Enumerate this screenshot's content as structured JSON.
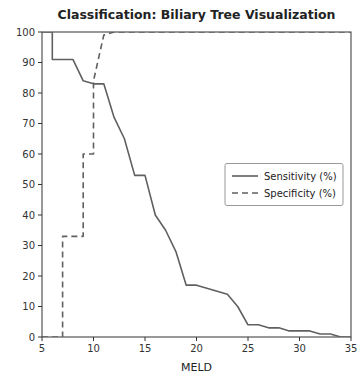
{
  "chart_data": {
    "type": "line",
    "title": "Classification: Biliary Tree Visualization",
    "xlabel": "MELD",
    "xlim": [
      5,
      35
    ],
    "ylim": [
      0,
      100
    ],
    "xticks": [
      5,
      10,
      15,
      20,
      25,
      30,
      35
    ],
    "yticks": [
      0,
      10,
      20,
      30,
      40,
      50,
      60,
      70,
      80,
      90,
      100
    ],
    "grid": false,
    "legend": "center right",
    "series": [
      {
        "name": "Sensitivity (%)",
        "color": "#606060",
        "line_style": "solid",
        "x": [
          5,
          6,
          6,
          7,
          8,
          9,
          10,
          11,
          12,
          13,
          14,
          15,
          16,
          17,
          18,
          19,
          20,
          21,
          22,
          23,
          24,
          25,
          26,
          27,
          28,
          29,
          30,
          31,
          32,
          33,
          34,
          35
        ],
        "values": [
          100,
          100,
          91,
          91,
          91,
          84,
          83,
          83,
          72,
          65,
          53,
          53,
          40,
          35,
          28,
          17,
          17,
          16,
          15,
          14,
          10,
          4,
          4,
          3,
          3,
          2,
          2,
          2,
          1,
          1,
          0,
          0
        ]
      },
      {
        "name": "Specificity (%)",
        "color": "#606060",
        "line_style": "dashed",
        "x": [
          5,
          6,
          6,
          7,
          7,
          8,
          9,
          9,
          10,
          10,
          11,
          12,
          13,
          14,
          15,
          16,
          17,
          18,
          19,
          20,
          21,
          22,
          23,
          24,
          25,
          26,
          27,
          28,
          29,
          30,
          31,
          32,
          33,
          34,
          35
        ],
        "values": [
          0,
          0,
          0,
          0,
          33,
          33,
          33,
          60,
          60,
          84,
          99,
          100,
          100,
          100,
          100,
          100,
          100,
          100,
          100,
          100,
          100,
          100,
          100,
          100,
          100,
          100,
          100,
          100,
          100,
          100,
          100,
          100,
          100,
          100,
          100
        ]
      }
    ]
  }
}
